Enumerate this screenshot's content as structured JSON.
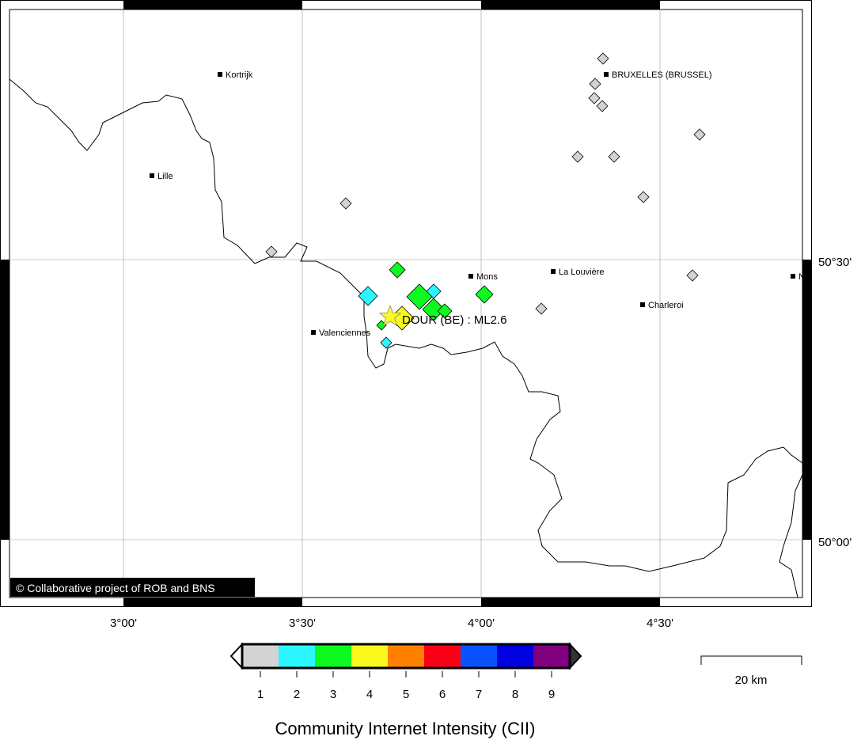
{
  "map": {
    "grid_longitudes": [
      "3°00'",
      "3°30'",
      "4°00'",
      "4°30'"
    ],
    "grid_latitudes": [
      "50°30'",
      "50°00'"
    ],
    "copyright": "© Collaborative project of ROB and BNS",
    "epicenter_label": "DOUR (BE) : ML2.6",
    "cities": [
      {
        "name": "Kortrijk"
      },
      {
        "name": "BRUXELLES (BRUSSEL)"
      },
      {
        "name": "Lille"
      },
      {
        "name": "Mons"
      },
      {
        "name": "La Louvière"
      },
      {
        "name": "Charleroi"
      },
      {
        "name": "Valenciennes"
      },
      {
        "name": "N"
      }
    ],
    "intensity_reports": [
      {
        "cii": 1
      },
      {
        "cii": 1
      },
      {
        "cii": 1
      },
      {
        "cii": 1
      },
      {
        "cii": 1
      },
      {
        "cii": 1
      },
      {
        "cii": 1
      },
      {
        "cii": 1
      },
      {
        "cii": 1
      },
      {
        "cii": 1
      },
      {
        "cii": 1
      },
      {
        "cii": 1
      },
      {
        "cii": 3
      },
      {
        "cii": 3
      },
      {
        "cii": 3
      },
      {
        "cii": 3
      },
      {
        "cii": 3
      },
      {
        "cii": 3
      },
      {
        "cii": 2
      },
      {
        "cii": 2
      },
      {
        "cii": 2
      },
      {
        "cii": 4
      }
    ]
  },
  "legend": {
    "title": "Community Internet Intensity (CII)",
    "labels": [
      "1",
      "2",
      "3",
      "4",
      "5",
      "6",
      "7",
      "8",
      "9"
    ],
    "colors": [
      "#d3d3d3",
      "#2af7ff",
      "#0ef920",
      "#f9f91e",
      "#ff8000",
      "#fb0014",
      "#0a52ff",
      "#0000e0",
      "#800080"
    ]
  },
  "scale_bar": {
    "label": "20 km"
  }
}
